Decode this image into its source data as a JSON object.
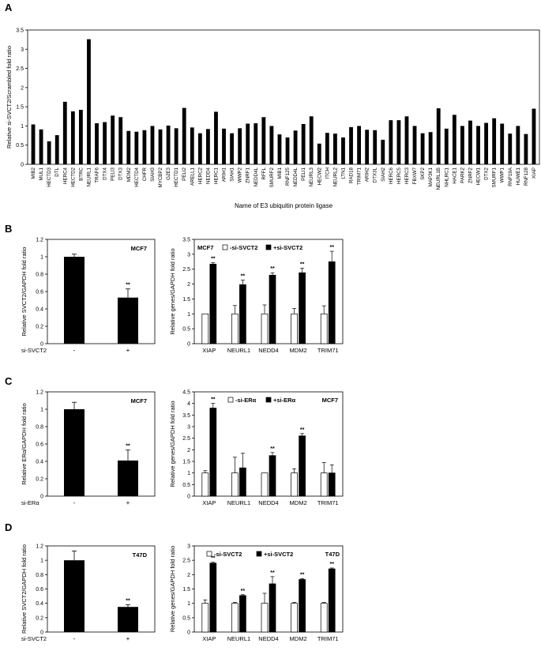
{
  "chart_data": [
    {
      "panel": "A",
      "type": "bar",
      "ylabel": "Relative si-SVCT2/Scrambled fold ratio",
      "xlabel": "Name of E3 ubiquitin protein ligase",
      "ylim": [
        0,
        3.5
      ],
      "yticks": [
        "0",
        "0.5",
        "1",
        "1.5",
        "2",
        "2.5",
        "3",
        "3.5"
      ],
      "categories": [
        "MIB2",
        "MUL1",
        "HECTD3",
        "DTL",
        "HERC4",
        "HECTD2",
        "BTRC",
        "NEURL1",
        "TRAF6",
        "DTX4",
        "PELI3",
        "DTX3",
        "MDM2",
        "HECTD4",
        "CHFR",
        "SIAH3",
        "MYCBP2",
        "G2E3",
        "HECTD1",
        "PELI2",
        "ARELL1",
        "HERC2",
        "NEDD4",
        "HERC1",
        "ARIH1",
        "SIAH1",
        "WWP2",
        "ZNRF1",
        "NEDD4L",
        "RFFL",
        "SMURF2",
        "MIB1",
        "RNF125",
        "NEDD4L",
        "PELI1",
        "NEURL3",
        "HECW2",
        "ITCH",
        "NEURL2",
        "LTN1",
        "RAD18",
        "TRIM71",
        "ARIH2",
        "DTX3L",
        "SIAH2",
        "HERC6",
        "HERC5",
        "HERC3",
        "FBXW7",
        "SKP2",
        "MAP3K1",
        "NEURL1B",
        "NHLRC1",
        "HACE1",
        "PARK2",
        "ZNRF2",
        "HECW1",
        "DTX2",
        "SMURF1",
        "WWP1",
        "RNF19A",
        "HUWE1",
        "RNF128",
        "XIAP"
      ],
      "values": [
        1.04,
        0.91,
        0.6,
        0.76,
        1.63,
        1.38,
        1.42,
        3.26,
        1.07,
        1.1,
        1.27,
        1.23,
        0.87,
        0.85,
        0.89,
        1.0,
        0.91,
        1.01,
        0.94,
        1.47,
        0.96,
        0.81,
        0.92,
        1.37,
        0.93,
        0.81,
        0.94,
        1.06,
        1.07,
        1.23,
        1.0,
        0.78,
        0.7,
        0.88,
        1.05,
        1.25,
        0.54,
        0.82,
        0.8,
        0.7,
        0.97,
        1.0,
        0.9,
        0.89,
        0.64,
        1.15,
        1.15,
        1.25,
        1.0,
        0.81,
        0.84,
        1.46,
        0.93,
        1.29,
        1.0,
        1.14,
        1.0,
        1.08,
        1.2,
        1.06,
        0.8,
        1.0,
        0.79,
        1.45
      ],
      "color": "#000000"
    },
    {
      "panel": "B",
      "type": "bar",
      "ylabel": "Relative SVCT2/GAPDH fold ratio",
      "cell_line": "MCF7",
      "ylim": [
        0,
        1.2
      ],
      "yticks": [
        "0",
        "0.2",
        "0.4",
        "0.6",
        "0.8",
        "1",
        "1.2"
      ],
      "categories": [
        "-",
        "+"
      ],
      "row_label": "si-SVCT2",
      "values": [
        1.0,
        0.53
      ],
      "errors": [
        0.03,
        0.1
      ],
      "significance": [
        "",
        "**"
      ]
    },
    {
      "panel": "B",
      "type": "bar",
      "ylabel": "Relative genes/GAPDH fold ratio",
      "cell_line": "MCF7",
      "ylim": [
        0,
        3.5
      ],
      "yticks": [
        "0",
        "0.5",
        "1",
        "1.5",
        "2",
        "2.5",
        "3",
        "3.5"
      ],
      "categories": [
        "XIAP",
        "NEURL1",
        "NEDD4",
        "MDM2",
        "TRIM71"
      ],
      "series": [
        {
          "name": "-si-SVCT2",
          "values": [
            1.0,
            1.0,
            1.0,
            1.0,
            1.0
          ],
          "errors": [
            0.0,
            0.28,
            0.3,
            0.18,
            0.27
          ],
          "fill": "#ffffff"
        },
        {
          "name": "+si-SVCT2",
          "values": [
            2.67,
            1.98,
            2.3,
            2.38,
            2.75
          ],
          "errors": [
            0.05,
            0.15,
            0.08,
            0.15,
            0.35
          ],
          "fill": "#000000"
        }
      ],
      "significance": [
        "**",
        "**",
        "**",
        "**",
        "**"
      ]
    },
    {
      "panel": "C",
      "type": "bar",
      "ylabel": "Relative ERα/GAPDH fold ratio",
      "cell_line": "MCF7",
      "ylim": [
        0,
        1.2
      ],
      "yticks": [
        "0",
        "0.2",
        "0.4",
        "0.6",
        "0.8",
        "1",
        "1.2"
      ],
      "categories": [
        "-",
        "+"
      ],
      "row_label": "si-ERα",
      "values": [
        1.0,
        0.41
      ],
      "errors": [
        0.08,
        0.12
      ],
      "significance": [
        "",
        "**"
      ]
    },
    {
      "panel": "C",
      "type": "bar",
      "ylabel": "Relative genes/GAPDH fold ratio",
      "cell_line": "MCF7",
      "ylim": [
        0,
        4.5
      ],
      "yticks": [
        "0",
        "0.5",
        "1",
        "1.5",
        "2",
        "2.5",
        "3",
        "3.5",
        "4",
        "4.5"
      ],
      "categories": [
        "XIAP",
        "NEURL1",
        "NEDD4",
        "MDM2",
        "TRIM71"
      ],
      "series": [
        {
          "name": "-si-ERα",
          "values": [
            1.0,
            1.0,
            1.0,
            1.0,
            1.0
          ],
          "errors": [
            0.1,
            0.68,
            0.0,
            0.18,
            0.45
          ],
          "fill": "#ffffff"
        },
        {
          "name": "+si-ERα",
          "values": [
            3.8,
            1.22,
            1.75,
            2.6,
            1.0
          ],
          "errors": [
            0.2,
            0.63,
            0.13,
            0.1,
            0.35
          ],
          "fill": "#000000"
        }
      ],
      "significance": [
        "**",
        "",
        "**",
        "**",
        ""
      ]
    },
    {
      "panel": "D",
      "type": "bar",
      "ylabel": "Relative SVCT2/GAPDH fold ratio",
      "cell_line": "T47D",
      "ylim": [
        0,
        1.2
      ],
      "yticks": [
        "0",
        "0.2",
        "0.4",
        "0.6",
        "0.8",
        "1",
        "1.2"
      ],
      "categories": [
        "-",
        "+"
      ],
      "row_label": "si-SVCT2",
      "values": [
        1.0,
        0.35
      ],
      "errors": [
        0.13,
        0.03
      ],
      "significance": [
        "",
        "**"
      ]
    },
    {
      "panel": "D",
      "type": "bar",
      "ylabel": "Relative genes/GAPDH fold ratio",
      "cell_line": "T47D",
      "ylim": [
        0,
        3
      ],
      "yticks": [
        "0",
        "0.5",
        "1",
        "1.5",
        "2",
        "2.5",
        "3"
      ],
      "categories": [
        "XIAP",
        "NEURL1",
        "NEDD4",
        "MDM2",
        "TRIM71"
      ],
      "series": [
        {
          "name": "-si-SVCT2",
          "values": [
            1.0,
            1.0,
            1.0,
            1.0,
            1.0
          ],
          "errors": [
            0.12,
            0.03,
            0.35,
            0.03,
            0.03
          ],
          "fill": "#ffffff"
        },
        {
          "name": "+si-SVCT2",
          "values": [
            2.4,
            1.27,
            1.68,
            1.83,
            2.2
          ],
          "errors": [
            0.03,
            0.03,
            0.25,
            0.03,
            0.03
          ],
          "fill": "#000000"
        }
      ],
      "significance": [
        "**",
        "**",
        "**",
        "**",
        "**"
      ]
    }
  ]
}
